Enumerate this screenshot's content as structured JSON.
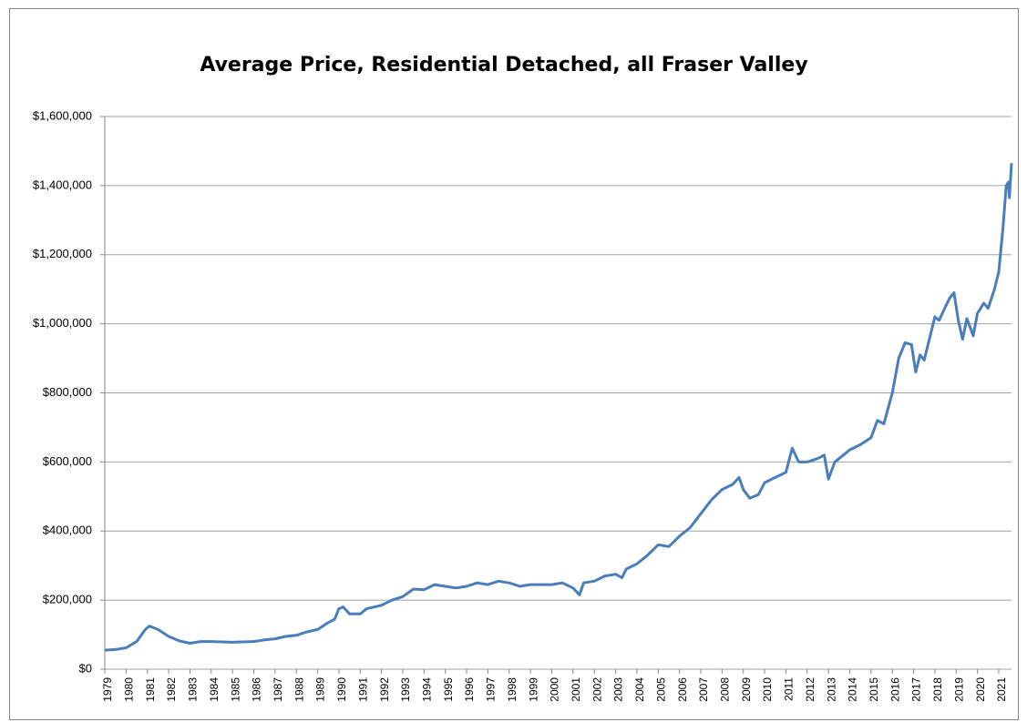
{
  "chart_data": {
    "type": "line",
    "title": "Average Price, Residential Detached, all Fraser Valley",
    "color": "#4a7ebb",
    "grid": true,
    "x": [
      1979,
      1979.5,
      1980,
      1980.5,
      1980.9,
      1981.1,
      1981.5,
      1982,
      1982.5,
      1983,
      1983.5,
      1984,
      1985,
      1986,
      1986.5,
      1987,
      1987.5,
      1988,
      1988.5,
      1989,
      1989.5,
      1989.8,
      1990,
      1990.2,
      1990.5,
      1991,
      1991.3,
      1992,
      1992.5,
      1993,
      1993.5,
      1994,
      1994.5,
      1995,
      1995.5,
      1996,
      1996.5,
      1997,
      1997.5,
      1998,
      1998.5,
      1999,
      1999.5,
      2000,
      2000.5,
      2001,
      2001.3,
      2001.5,
      2002,
      2002.5,
      2003,
      2003.3,
      2003.5,
      2004,
      2004.5,
      2005,
      2005.5,
      2006,
      2006.5,
      2007,
      2007.5,
      2008,
      2008.5,
      2008.8,
      2009,
      2009.3,
      2009.7,
      2010,
      2010.5,
      2011,
      2011.3,
      2011.6,
      2012,
      2012.5,
      2012.8,
      2013,
      2013.3,
      2013.7,
      2014,
      2014.5,
      2015,
      2015.3,
      2015.6,
      2016,
      2016.3,
      2016.6,
      2016.9,
      2017.1,
      2017.3,
      2017.5,
      2017.8,
      2018,
      2018.2,
      2018.5,
      2018.7,
      2018.9,
      2019.1,
      2019.3,
      2019.5,
      2019.8,
      2020,
      2020.3,
      2020.5,
      2020.8,
      2021,
      2021.2,
      2021.35,
      2021.45,
      2021.5,
      2021.6
    ],
    "values": [
      55000,
      57000,
      62000,
      80000,
      115000,
      125000,
      115000,
      95000,
      82000,
      75000,
      80000,
      80000,
      78000,
      80000,
      85000,
      88000,
      95000,
      98000,
      108000,
      115000,
      135000,
      145000,
      175000,
      180000,
      160000,
      160000,
      175000,
      185000,
      200000,
      210000,
      232000,
      230000,
      245000,
      240000,
      235000,
      240000,
      250000,
      245000,
      255000,
      250000,
      240000,
      245000,
      245000,
      245000,
      250000,
      235000,
      215000,
      250000,
      255000,
      270000,
      275000,
      265000,
      290000,
      305000,
      330000,
      360000,
      355000,
      385000,
      410000,
      450000,
      490000,
      520000,
      535000,
      555000,
      520000,
      495000,
      505000,
      540000,
      555000,
      570000,
      640000,
      600000,
      600000,
      610000,
      620000,
      550000,
      600000,
      620000,
      635000,
      650000,
      670000,
      720000,
      710000,
      800000,
      900000,
      945000,
      940000,
      860000,
      910000,
      895000,
      970000,
      1020000,
      1010000,
      1050000,
      1075000,
      1090000,
      1010000,
      955000,
      1015000,
      965000,
      1030000,
      1060000,
      1045000,
      1100000,
      1150000,
      1280000,
      1400000,
      1410000,
      1365000,
      1465000
    ],
    "xlim": [
      1979,
      2021.6
    ],
    "xticks": [
      1979,
      1980,
      1981,
      1982,
      1983,
      1984,
      1985,
      1986,
      1987,
      1988,
      1989,
      1990,
      1991,
      1992,
      1993,
      1994,
      1995,
      1996,
      1997,
      1998,
      1999,
      2000,
      2001,
      2002,
      2003,
      2004,
      2005,
      2006,
      2007,
      2008,
      2009,
      2010,
      2011,
      2012,
      2013,
      2014,
      2015,
      2016,
      2017,
      2018,
      2019,
      2020,
      2021
    ],
    "ylim": [
      0,
      1600000
    ],
    "yticks": [
      {
        "value": 0,
        "label": "$0"
      },
      {
        "value": 200000,
        "label": "$200,000"
      },
      {
        "value": 400000,
        "label": "$400,000"
      },
      {
        "value": 600000,
        "label": "$600,000"
      },
      {
        "value": 800000,
        "label": "$800,000"
      },
      {
        "value": 1000000,
        "label": "$1,000,000"
      },
      {
        "value": 1200000,
        "label": "$1,200,000"
      },
      {
        "value": 1400000,
        "label": "$1,400,000"
      },
      {
        "value": 1600000,
        "label": "$1,600,000"
      }
    ]
  }
}
